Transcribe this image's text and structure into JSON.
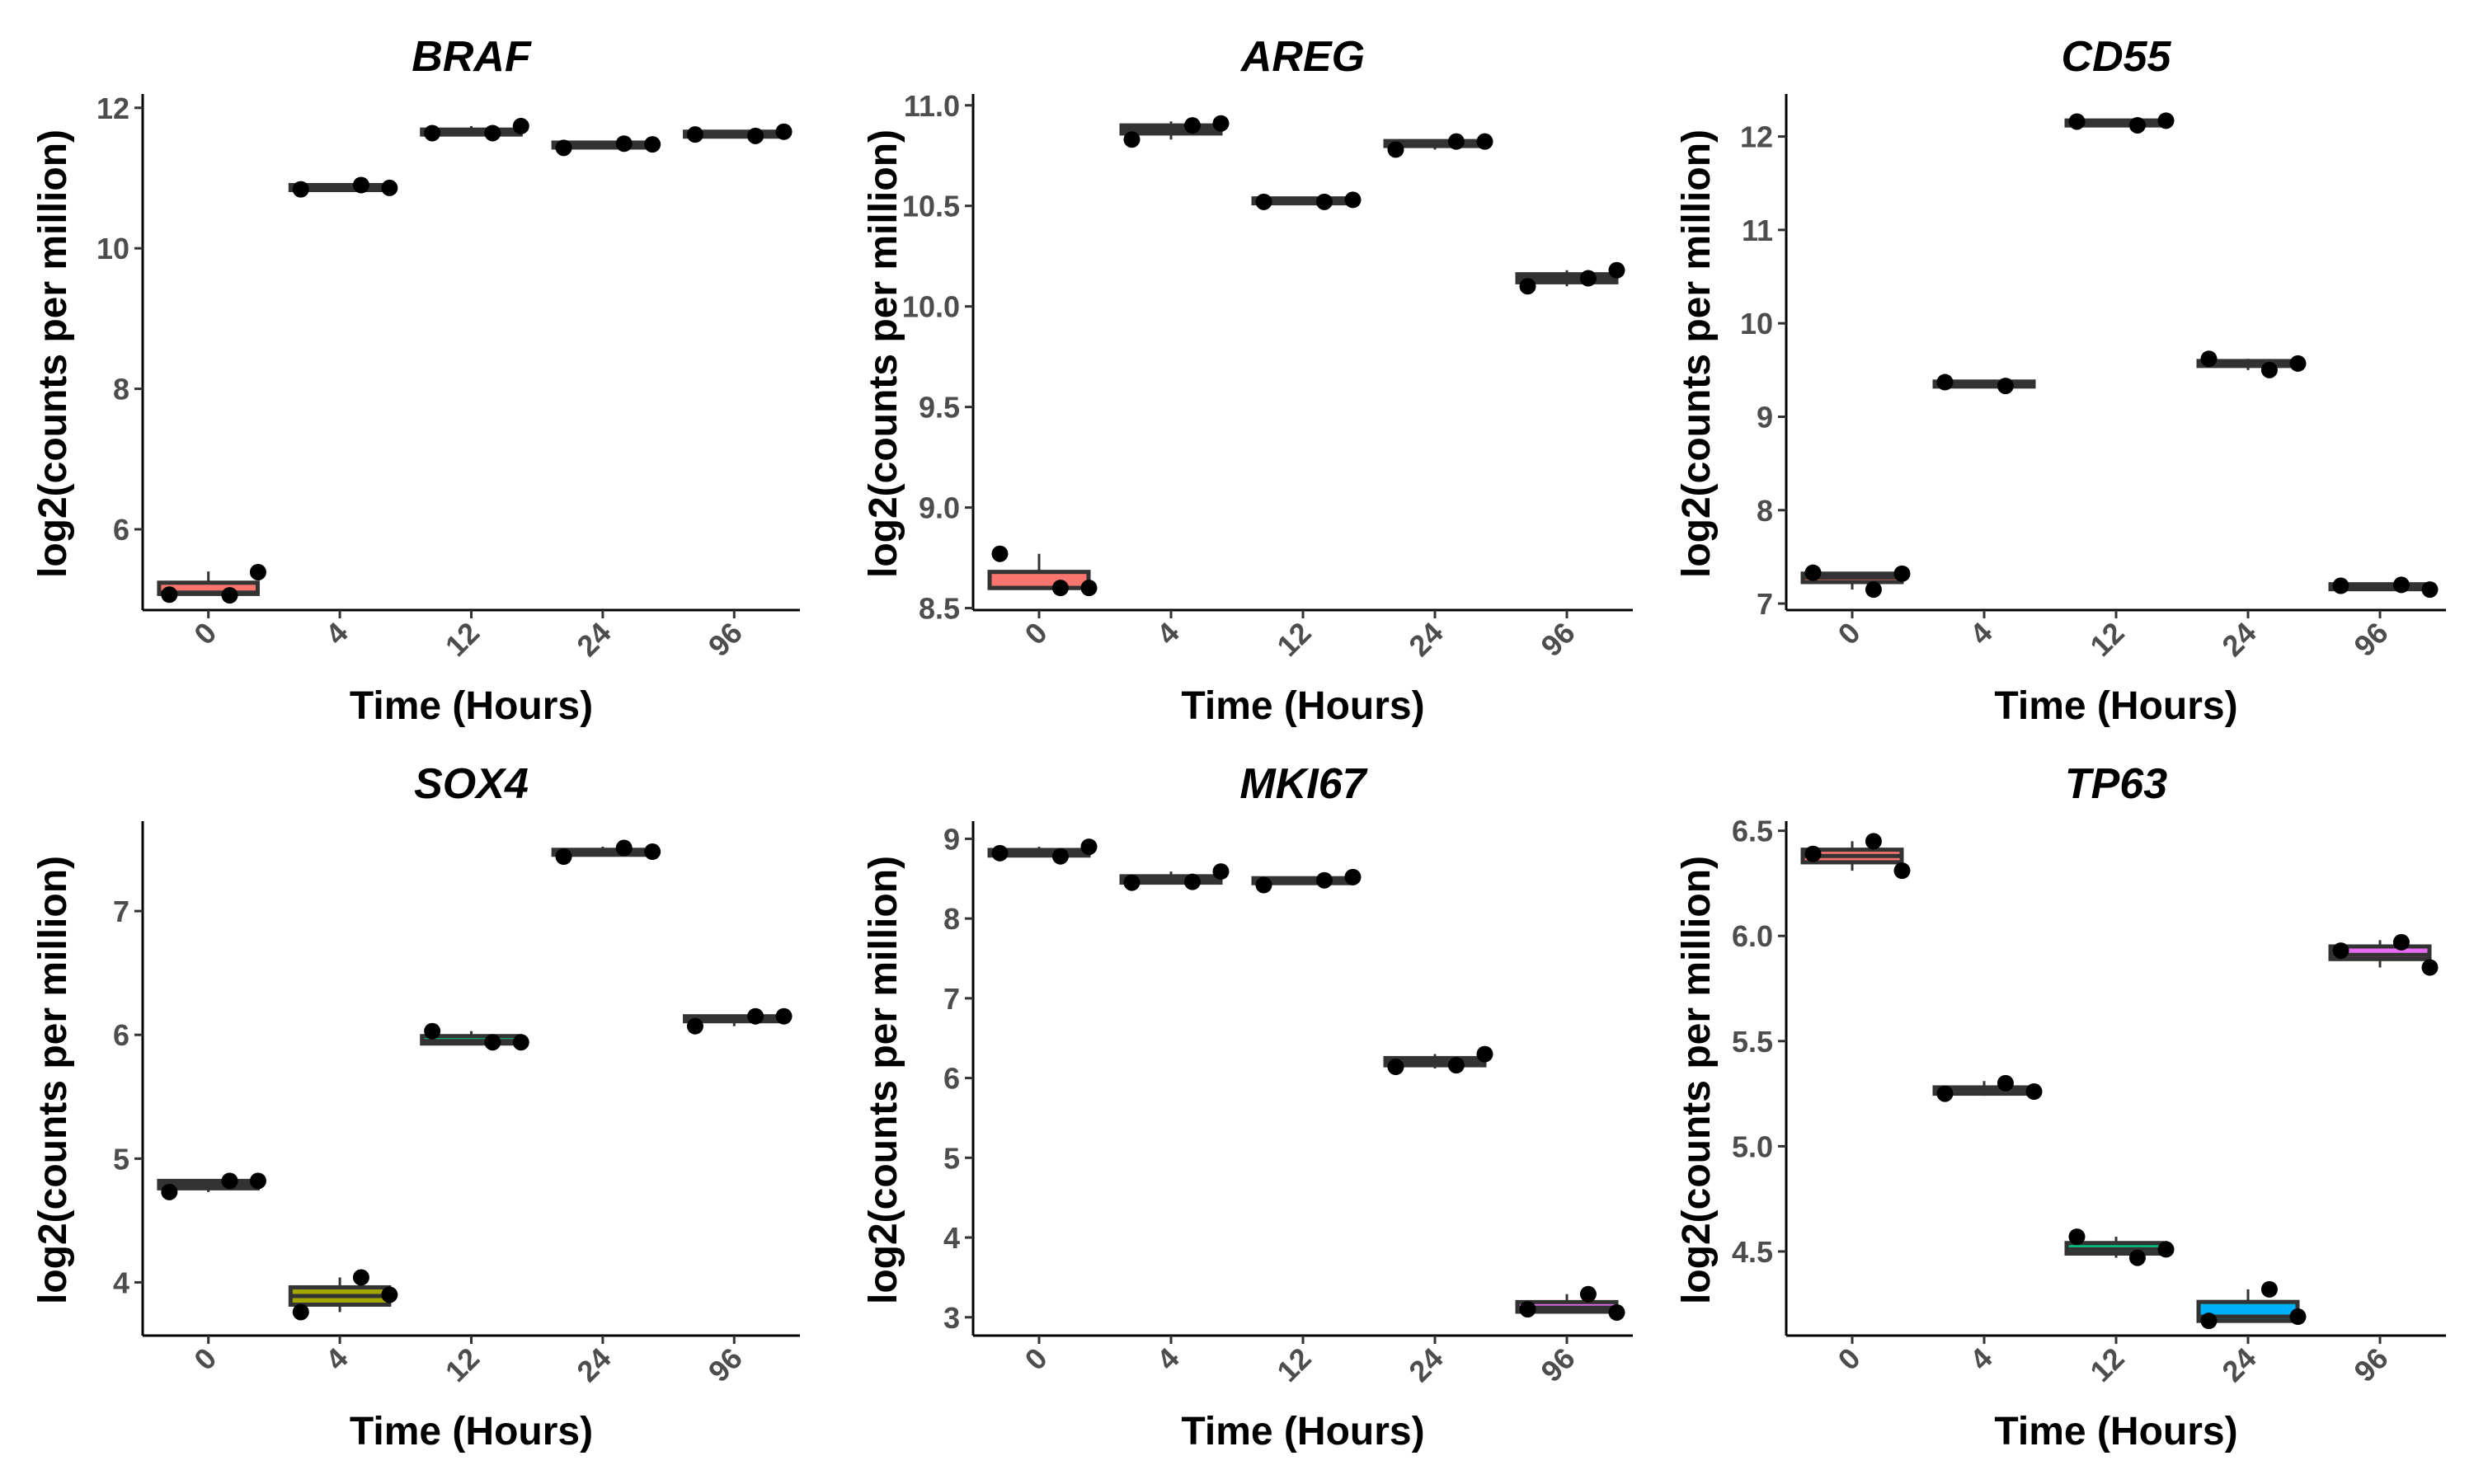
{
  "figure": {
    "background": "#ffffff",
    "point_color": "#000000",
    "box_line_color": "#333333"
  },
  "chart_data": [
    {
      "type": "box",
      "title": "BRAF",
      "xlabel": "Time (Hours)",
      "ylabel": "log2(counts per million)",
      "categories": [
        "0",
        "4",
        "12",
        "24",
        "96"
      ],
      "ylim": [
        4.85,
        12.15
      ],
      "yticks": [
        6,
        8,
        10,
        12
      ],
      "ytick_labels": [
        "6",
        "8",
        "10",
        "12"
      ],
      "boxes": [
        {
          "category": "0",
          "q1": 5.08,
          "median": 5.1,
          "q3": 5.24,
          "whisker_low": 5.08,
          "whisker_high": 5.4,
          "fill": "#f8766d"
        },
        {
          "category": "4",
          "q1": 10.85,
          "median": 10.86,
          "q3": 10.88,
          "whisker_low": 10.83,
          "whisker_high": 10.9,
          "fill": "#a3a500"
        },
        {
          "category": "12",
          "q1": 11.62,
          "median": 11.64,
          "q3": 11.69,
          "whisker_low": 11.62,
          "whisker_high": 11.74,
          "fill": "#00bf7d"
        },
        {
          "category": "24",
          "q1": 11.45,
          "median": 11.48,
          "q3": 11.49,
          "whisker_low": 11.43,
          "whisker_high": 11.5,
          "fill": "#00b0f6"
        },
        {
          "category": "96",
          "q1": 11.6,
          "median": 11.62,
          "q3": 11.65,
          "whisker_low": 11.58,
          "whisker_high": 11.67,
          "fill": "#e76bf3"
        }
      ],
      "points": [
        {
          "category": "0",
          "values": [
            5.07,
            5.06,
            5.39
          ]
        },
        {
          "category": "4",
          "values": [
            10.84,
            10.9,
            10.86
          ]
        },
        {
          "category": "12",
          "values": [
            11.64,
            11.64,
            11.74
          ]
        },
        {
          "category": "24",
          "values": [
            11.43,
            11.49,
            11.48
          ]
        },
        {
          "category": "96",
          "values": [
            11.62,
            11.6,
            11.66
          ]
        }
      ]
    },
    {
      "type": "box",
      "title": "AREG",
      "xlabel": "Time (Hours)",
      "ylabel": "log2(counts per million)",
      "categories": [
        "0",
        "4",
        "12",
        "24",
        "96"
      ],
      "ylim": [
        8.49,
        11.04
      ],
      "yticks": [
        8.5,
        9.0,
        9.5,
        10.0,
        10.5,
        11.0
      ],
      "ytick_labels": [
        "8.5",
        "9.0",
        "9.5",
        "10.0",
        "10.5",
        "11.0"
      ],
      "boxes": [
        {
          "category": "0",
          "q1": 8.6,
          "median": 8.6,
          "q3": 8.68,
          "whisker_low": 8.6,
          "whisker_high": 8.77,
          "fill": "#f8766d"
        },
        {
          "category": "4",
          "q1": 10.86,
          "median": 10.88,
          "q3": 10.9,
          "whisker_low": 10.83,
          "whisker_high": 10.92,
          "fill": "#a3a500"
        },
        {
          "category": "12",
          "q1": 10.52,
          "median": 10.525,
          "q3": 10.53,
          "whisker_low": 10.52,
          "whisker_high": 10.53,
          "fill": "#00bf7d"
        },
        {
          "category": "24",
          "q1": 10.8,
          "median": 10.81,
          "q3": 10.82,
          "whisker_low": 10.78,
          "whisker_high": 10.82,
          "fill": "#00b0f6"
        },
        {
          "category": "96",
          "q1": 10.12,
          "median": 10.14,
          "q3": 10.16,
          "whisker_low": 10.1,
          "whisker_high": 10.18,
          "fill": "#e76bf3"
        }
      ],
      "points": [
        {
          "category": "0",
          "values": [
            8.77,
            8.6,
            8.6
          ]
        },
        {
          "category": "4",
          "values": [
            10.83,
            10.9,
            10.91
          ]
        },
        {
          "category": "12",
          "values": [
            10.52,
            10.52,
            10.53
          ]
        },
        {
          "category": "24",
          "values": [
            10.78,
            10.82,
            10.82
          ]
        },
        {
          "category": "96",
          "values": [
            10.1,
            10.14,
            10.18
          ]
        }
      ]
    },
    {
      "type": "box",
      "title": "CD55",
      "xlabel": "Time (Hours)",
      "ylabel": "log2(counts per million)",
      "categories": [
        "0",
        "4",
        "12",
        "24",
        "96"
      ],
      "ylim": [
        6.93,
        12.42
      ],
      "yticks": [
        7,
        8,
        9,
        10,
        11,
        12
      ],
      "ytick_labels": [
        "7",
        "8",
        "9",
        "10",
        "11",
        "12"
      ],
      "boxes": [
        {
          "category": "0",
          "q1": 7.23,
          "median": 7.28,
          "q3": 7.32,
          "whisker_low": 7.15,
          "whisker_high": 7.33,
          "fill": "#f8766d"
        },
        {
          "category": "4",
          "q1": 9.34,
          "median": 9.35,
          "q3": 9.36,
          "whisker_low": 9.33,
          "whisker_high": 9.37,
          "fill": "#a3a500"
        },
        {
          "category": "12",
          "q1": 12.13,
          "median": 12.15,
          "q3": 12.16,
          "whisker_low": 12.12,
          "whisker_high": 12.17,
          "fill": "#00bf7d"
        },
        {
          "category": "24",
          "q1": 9.55,
          "median": 9.57,
          "q3": 9.59,
          "whisker_low": 9.5,
          "whisker_high": 9.62,
          "fill": "#00b0f6"
        },
        {
          "category": "96",
          "q1": 7.17,
          "median": 7.18,
          "q3": 7.19,
          "whisker_low": 7.15,
          "whisker_high": 7.2,
          "fill": "#e76bf3"
        }
      ],
      "points": [
        {
          "category": "0",
          "values": [
            7.33,
            7.15,
            7.32
          ]
        },
        {
          "category": "4",
          "values": [
            9.37,
            9.33
          ]
        },
        {
          "category": "12",
          "values": [
            12.16,
            12.12,
            12.17
          ]
        },
        {
          "category": "24",
          "values": [
            9.62,
            9.5,
            9.57
          ]
        },
        {
          "category": "96",
          "values": [
            7.19,
            7.2,
            7.15
          ]
        }
      ]
    },
    {
      "type": "box",
      "title": "SOX4",
      "xlabel": "Time (Hours)",
      "ylabel": "log2(counts per million)",
      "categories": [
        "0",
        "4",
        "12",
        "24",
        "96"
      ],
      "ylim": [
        3.57,
        7.7
      ],
      "yticks": [
        4,
        5,
        6,
        7
      ],
      "ytick_labels": [
        "4",
        "5",
        "6",
        "7"
      ],
      "boxes": [
        {
          "category": "0",
          "q1": 4.76,
          "median": 4.79,
          "q3": 4.82,
          "whisker_low": 4.73,
          "whisker_high": 4.83,
          "fill": "#f8766d"
        },
        {
          "category": "4",
          "q1": 3.82,
          "median": 3.89,
          "q3": 3.96,
          "whisker_low": 3.76,
          "whisker_high": 4.04,
          "fill": "#a3a500"
        },
        {
          "category": "12",
          "q1": 5.93,
          "median": 5.95,
          "q3": 5.99,
          "whisker_low": 5.93,
          "whisker_high": 6.03,
          "fill": "#00bf7d"
        },
        {
          "category": "24",
          "q1": 7.46,
          "median": 7.48,
          "q3": 7.49,
          "whisker_low": 7.44,
          "whisker_high": 7.52,
          "fill": "#00b0f6"
        },
        {
          "category": "96",
          "q1": 6.11,
          "median": 6.13,
          "q3": 6.15,
          "whisker_low": 6.07,
          "whisker_high": 6.16,
          "fill": "#e76bf3"
        }
      ],
      "points": [
        {
          "category": "0",
          "values": [
            4.73,
            4.82,
            4.82
          ]
        },
        {
          "category": "4",
          "values": [
            3.76,
            4.04,
            3.9
          ]
        },
        {
          "category": "12",
          "values": [
            6.03,
            5.94,
            5.94
          ]
        },
        {
          "category": "24",
          "values": [
            7.44,
            7.51,
            7.48
          ]
        },
        {
          "category": "96",
          "values": [
            6.07,
            6.15,
            6.15
          ]
        }
      ]
    },
    {
      "type": "box",
      "title": "MKI67",
      "xlabel": "Time (Hours)",
      "ylabel": "log2(counts per million)",
      "categories": [
        "0",
        "4",
        "12",
        "24",
        "96"
      ],
      "ylim": [
        2.77,
        9.18
      ],
      "yticks": [
        3,
        4,
        5,
        6,
        7,
        8,
        9
      ],
      "ytick_labels": [
        "3",
        "4",
        "5",
        "6",
        "7",
        "8",
        "9"
      ],
      "boxes": [
        {
          "category": "0",
          "q1": 8.79,
          "median": 8.82,
          "q3": 8.86,
          "whisker_low": 8.78,
          "whisker_high": 8.9,
          "fill": "#f8766d"
        },
        {
          "category": "4",
          "q1": 8.45,
          "median": 8.48,
          "q3": 8.53,
          "whisker_low": 8.45,
          "whisker_high": 8.59,
          "fill": "#a3a500"
        },
        {
          "category": "12",
          "q1": 8.46,
          "median": 8.47,
          "q3": 8.49,
          "whisker_low": 8.42,
          "whisker_high": 8.52,
          "fill": "#00bf7d"
        },
        {
          "category": "24",
          "q1": 6.16,
          "median": 6.2,
          "q3": 6.25,
          "whisker_low": 6.12,
          "whisker_high": 6.3,
          "fill": "#00b0f6"
        },
        {
          "category": "96",
          "q1": 3.07,
          "median": 3.12,
          "q3": 3.19,
          "whisker_low": 3.06,
          "whisker_high": 3.29,
          "fill": "#e76bf3"
        }
      ],
      "points": [
        {
          "category": "0",
          "values": [
            8.82,
            8.78,
            8.9
          ]
        },
        {
          "category": "4",
          "values": [
            8.45,
            8.46,
            8.59
          ]
        },
        {
          "category": "12",
          "values": [
            8.42,
            8.48,
            8.52
          ]
        },
        {
          "category": "24",
          "values": [
            6.14,
            6.16,
            6.3
          ]
        },
        {
          "category": "96",
          "values": [
            3.1,
            3.29,
            3.06
          ]
        }
      ]
    },
    {
      "type": "box",
      "title": "TP63",
      "xlabel": "Time (Hours)",
      "ylabel": "log2(counts per million)",
      "categories": [
        "0",
        "4",
        "12",
        "24",
        "96"
      ],
      "ylim": [
        4.1,
        6.53
      ],
      "yticks": [
        4.5,
        5.0,
        5.5,
        6.0,
        6.5
      ],
      "ytick_labels": [
        "4.5",
        "5.0",
        "5.5",
        "6.0",
        "6.5"
      ],
      "boxes": [
        {
          "category": "0",
          "q1": 6.35,
          "median": 6.38,
          "q3": 6.41,
          "whisker_low": 6.31,
          "whisker_high": 6.45,
          "fill": "#f8766d"
        },
        {
          "category": "4",
          "q1": 5.25,
          "median": 5.27,
          "q3": 5.28,
          "whisker_low": 5.24,
          "whisker_high": 5.31,
          "fill": "#a3a500"
        },
        {
          "category": "12",
          "q1": 4.49,
          "median": 4.51,
          "q3": 4.54,
          "whisker_low": 4.47,
          "whisker_high": 4.57,
          "fill": "#00bf7d"
        },
        {
          "category": "24",
          "q1": 4.17,
          "median": 4.19,
          "q3": 4.26,
          "whisker_low": 4.17,
          "whisker_high": 4.32,
          "fill": "#00b0f6"
        },
        {
          "category": "96",
          "q1": 5.89,
          "median": 5.91,
          "q3": 5.95,
          "whisker_low": 5.85,
          "whisker_high": 5.98,
          "fill": "#e76bf3"
        }
      ],
      "points": [
        {
          "category": "0",
          "values": [
            6.39,
            6.45,
            6.31
          ]
        },
        {
          "category": "4",
          "values": [
            5.25,
            5.3,
            5.26
          ]
        },
        {
          "category": "12",
          "values": [
            4.57,
            4.47,
            4.51
          ]
        },
        {
          "category": "24",
          "values": [
            4.17,
            4.32,
            4.19
          ]
        },
        {
          "category": "96",
          "values": [
            5.93,
            5.97,
            5.85
          ]
        }
      ]
    }
  ]
}
